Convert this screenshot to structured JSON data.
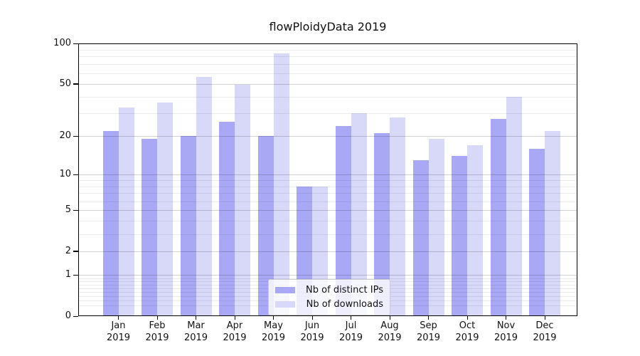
{
  "chart_data": {
    "type": "bar",
    "title": "flowPloidyData 2019",
    "categories": [
      "Jan",
      "Feb",
      "Mar",
      "Apr",
      "May",
      "Jun",
      "Jul",
      "Aug",
      "Sep",
      "Oct",
      "Nov",
      "Dec"
    ],
    "year": "2019",
    "series": [
      {
        "name": "Nb of distinct IPs",
        "color": "#a8a8f5",
        "values": [
          22,
          19,
          20,
          26,
          20,
          8,
          24,
          21,
          13,
          14,
          27,
          16
        ]
      },
      {
        "name": "Nb of downloads",
        "color": "#d8d8f9",
        "values": [
          33,
          36,
          56,
          49,
          84,
          8,
          30,
          28,
          19,
          17,
          40,
          22
        ]
      }
    ],
    "xlabel": "",
    "ylabel": "",
    "yscale": "log1p",
    "ylim": [
      0,
      100
    ],
    "yticks": [
      0,
      1,
      2,
      5,
      10,
      20,
      50,
      100
    ],
    "minor_gridlines": [
      0.2,
      0.3,
      0.4,
      0.5,
      0.6,
      0.7,
      0.8,
      0.9,
      3,
      4,
      6,
      7,
      8,
      9,
      30,
      40,
      60,
      70,
      80,
      90
    ],
    "grid": true,
    "legend_position": "lower center"
  }
}
